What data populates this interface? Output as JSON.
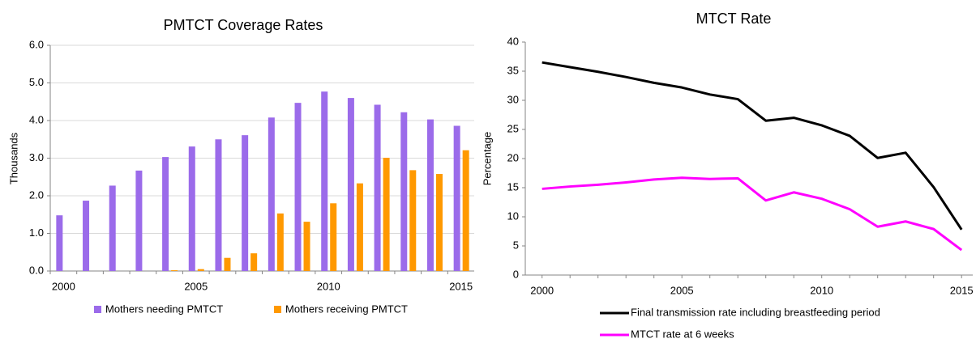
{
  "chart_data": [
    {
      "type": "bar",
      "title": "PMTCT Coverage Rates",
      "ylabel": "Thousands",
      "categories": [
        "2000",
        null,
        null,
        null,
        null,
        "2005",
        null,
        null,
        null,
        null,
        "2010",
        null,
        null,
        null,
        null,
        "2015"
      ],
      "series": [
        {
          "name": "Mothers needing PMTCT",
          "color": "#9b6bea",
          "values": [
            1.48,
            1.87,
            2.27,
            2.67,
            3.03,
            3.31,
            3.5,
            3.61,
            4.08,
            4.47,
            4.77,
            4.6,
            4.42,
            4.22,
            4.03,
            3.86
          ]
        },
        {
          "name": "Mothers receiving PMTCT",
          "color": "#ff9900",
          "values": [
            0,
            0,
            0,
            0,
            0.02,
            0.05,
            0.35,
            0.47,
            1.53,
            1.31,
            1.8,
            2.33,
            3.01,
            2.68,
            2.58,
            3.21
          ]
        }
      ],
      "ylim": [
        0,
        6
      ],
      "yticks": [
        {
          "value": 0,
          "label": "0.0"
        },
        {
          "value": 1,
          "label": "1.0"
        },
        {
          "value": 2,
          "label": "2.0"
        },
        {
          "value": 3,
          "label": "3.0"
        },
        {
          "value": 4,
          "label": "4.0"
        },
        {
          "value": 5,
          "label": "5.0"
        },
        {
          "value": 6,
          "label": "6.0"
        }
      ],
      "grid": true,
      "legend": "bottom"
    },
    {
      "type": "line",
      "title": "MTCT Rate",
      "ylabel": "Percentage",
      "x": [
        2000,
        2001,
        2002,
        2003,
        2004,
        2005,
        2006,
        2007,
        2008,
        2009,
        2010,
        2011,
        2012,
        2013,
        2014,
        2015
      ],
      "series": [
        {
          "name": "Final transmission rate including breastfeeding period",
          "color": "#000000",
          "values": [
            36.5,
            35.7,
            34.9,
            34.0,
            33.0,
            32.2,
            31.0,
            30.2,
            26.5,
            27.0,
            25.7,
            23.9,
            20.1,
            21.0,
            15.1,
            7.8
          ]
        },
        {
          "name": "MTCT rate at 6 weeks",
          "color": "#ff00ff",
          "values": [
            14.8,
            15.2,
            15.5,
            15.9,
            16.4,
            16.7,
            16.5,
            16.6,
            12.8,
            14.2,
            13.1,
            11.3,
            8.3,
            9.2,
            7.9,
            4.3
          ]
        }
      ],
      "xlim": [
        1999.4,
        2015.4
      ],
      "xticks": [
        2000,
        2005,
        2010,
        2015
      ],
      "ylim": [
        0,
        40
      ],
      "yticks": [
        0,
        5,
        10,
        15,
        20,
        25,
        30,
        35,
        40
      ],
      "grid": false,
      "legend": "bottom"
    }
  ]
}
